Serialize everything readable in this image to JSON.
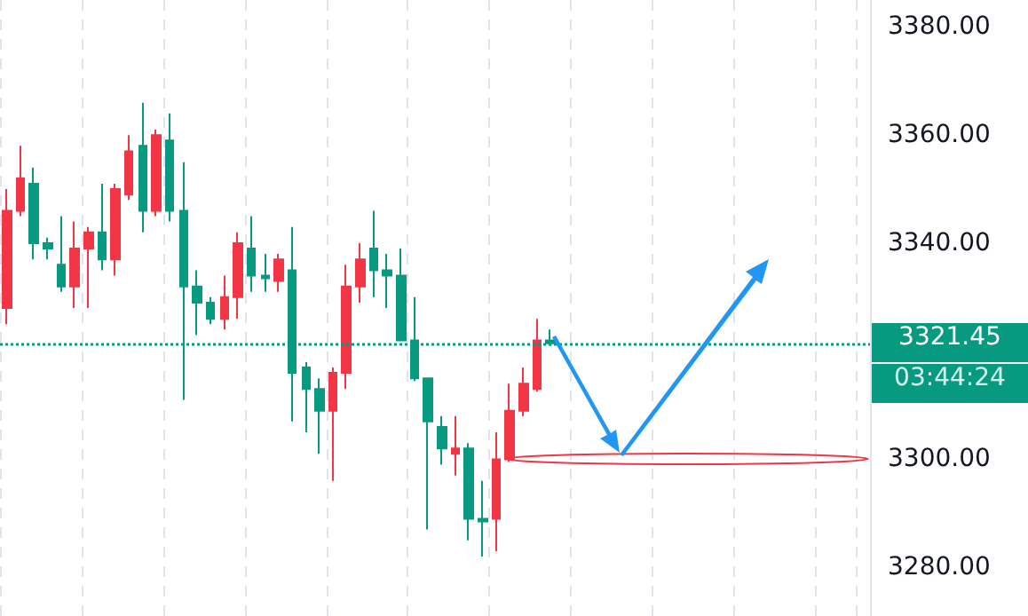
{
  "chart_data": {
    "type": "candlestick",
    "categories": [
      null,
      null,
      null,
      null,
      null,
      null,
      null,
      null,
      null,
      null,
      null,
      null,
      null,
      null,
      null,
      null,
      null,
      null,
      null,
      null,
      null,
      null,
      null,
      null,
      null,
      null,
      null,
      null,
      null,
      null,
      null,
      null,
      null,
      null,
      null,
      null,
      null,
      null,
      null,
      null,
      null,
      null,
      null,
      null,
      null,
      null,
      null,
      null,
      null,
      null,
      null,
      null,
      null,
      null,
      null,
      null,
      null,
      null,
      null,
      null,
      null,
      null,
      null,
      null
    ],
    "ohlc": [
      [
        3328,
        3350,
        3325,
        3346
      ],
      [
        3346,
        3358,
        3345,
        3352
      ],
      [
        3351,
        3354,
        3337,
        3340
      ],
      [
        3340,
        3341,
        3337,
        3339
      ],
      [
        3336,
        3345,
        3331,
        3332
      ],
      [
        3332,
        3344,
        3328,
        3339
      ],
      [
        3339,
        3343,
        3328,
        3342
      ],
      [
        3342,
        3351,
        3335,
        3337
      ],
      [
        3337,
        3351,
        3334,
        3350
      ],
      [
        3349,
        3360,
        3348,
        3357
      ],
      [
        3358,
        3366,
        3342,
        3346
      ],
      [
        3346,
        3361,
        3345,
        3360
      ],
      [
        3359,
        3364,
        3344,
        3346
      ],
      [
        3346,
        3355,
        3311,
        3332
      ],
      [
        3332,
        3335,
        3323,
        3329
      ],
      [
        3329,
        3330,
        3325,
        3326
      ],
      [
        3326,
        3334,
        3324,
        3330
      ],
      [
        3330,
        3342,
        3326,
        3340
      ],
      [
        3339,
        3345,
        3331,
        3334
      ],
      [
        3334,
        3338,
        3331,
        3333.5
      ],
      [
        3333,
        3338,
        3331,
        3337
      ],
      [
        3335,
        3343,
        3307,
        3316
      ],
      [
        3317,
        3318,
        3305,
        3313
      ],
      [
        3313,
        3315,
        3301,
        3309
      ],
      [
        3309,
        3317,
        3296,
        3316
      ],
      [
        3316,
        3336,
        3313,
        3332
      ],
      [
        3332,
        3340,
        3329,
        3337
      ],
      [
        3339,
        3346,
        3330,
        3335
      ],
      [
        3335,
        3338,
        3328,
        3334
      ],
      [
        3334,
        3339,
        3322,
        3322
      ],
      [
        3322,
        3330,
        3314.5,
        3315
      ],
      [
        3315,
        3315,
        3287,
        3307
      ],
      [
        3306,
        3308,
        3299,
        3302
      ],
      [
        3301,
        3308,
        3297,
        3302
      ],
      [
        3302,
        3303,
        3285,
        3289
      ],
      [
        3289,
        3296,
        3282,
        3288.5
      ],
      [
        3289,
        3305,
        3283,
        3300
      ],
      [
        3300,
        3314,
        3299.5,
        3309
      ],
      [
        3309,
        3317,
        3308,
        3314
      ],
      [
        3313,
        3326,
        3312.5,
        3322
      ],
      [
        3322,
        3324,
        3321,
        3321.45
      ],
      null,
      null,
      null,
      null,
      null,
      null,
      null,
      null,
      null,
      null,
      null,
      null,
      null,
      null,
      null,
      null,
      null,
      null,
      null,
      null,
      null,
      null,
      null
    ],
    "colors": [
      "#f23645",
      "#f23645",
      "#089981",
      "#089981",
      "#089981",
      "#f23645",
      "#f23645",
      "#089981",
      "#f23645",
      "#f23645",
      "#089981",
      "#f23645",
      "#089981",
      "#089981",
      "#089981",
      "#089981",
      "#f23645",
      "#f23645",
      "#089981",
      "#089981",
      "#f23645",
      "#089981",
      "#089981",
      "#089981",
      "#f23645",
      "#f23645",
      "#f23645",
      "#089981",
      "#089981",
      "#089981",
      "#089981",
      "#089981",
      "#089981",
      "#f23645",
      "#089981",
      "#089981",
      "#f23645",
      "#f23645",
      "#f23645",
      "#f23645",
      "#089981",
      null,
      null,
      null,
      null,
      null,
      null,
      null,
      null,
      null,
      null,
      null,
      null,
      null,
      null,
      null,
      null,
      null,
      null,
      null,
      null,
      null,
      null,
      null
    ],
    "ylim": [
      3271,
      3385
    ],
    "yticks": [
      {
        "value": 3280,
        "label": "3280.00"
      },
      {
        "value": 3300,
        "label": "3300.00"
      },
      {
        "value": 3340,
        "label": "3340.00"
      },
      {
        "value": 3360,
        "label": "3360.00"
      },
      {
        "value": 3380,
        "label": "3380.00"
      }
    ],
    "tick_labels": "y",
    "grid": "x",
    "ref_lines": [
      {
        "axis": "y",
        "value": 3321.45,
        "label": "3321.45",
        "color": "#089981",
        "line_style": "dotted"
      }
    ],
    "annotations": [
      "03:44:24"
    ]
  }
}
